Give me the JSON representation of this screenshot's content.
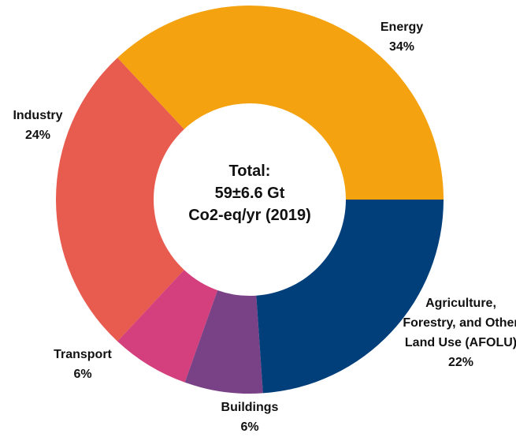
{
  "chart_data": {
    "type": "donut",
    "center_text": [
      "Total:",
      "59±6.6 Gt",
      "Co2-eq/yr (2019)"
    ],
    "categories": [
      "Energy",
      "Industry",
      "Transport",
      "Buildings",
      "Agriculture, Forestry, and Other Land Use (AFOLU)"
    ],
    "values": [
      34,
      24,
      6,
      6,
      22
    ],
    "value_labels": [
      "34%",
      "24%",
      "6%",
      "6%",
      "22%"
    ],
    "colors": [
      "#f4a20f",
      "#e85b4f",
      "#d3407d",
      "#7a4286",
      "#003f7a"
    ]
  }
}
